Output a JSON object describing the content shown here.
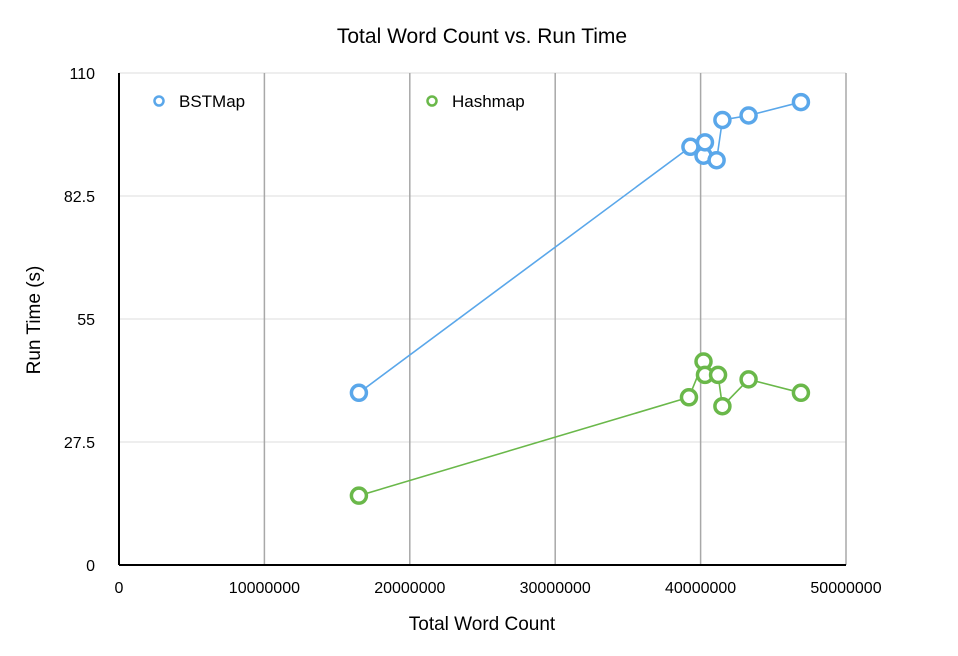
{
  "chart_data": {
    "type": "scatter",
    "title": "Total Word Count vs. Run Time",
    "xlabel": "Total Word Count",
    "ylabel": "Run Time (s)",
    "xlim": [
      0,
      50000000
    ],
    "ylim": [
      0,
      110
    ],
    "x_ticks": [
      0,
      10000000,
      20000000,
      30000000,
      40000000,
      50000000
    ],
    "y_ticks": [
      0,
      27.5,
      55,
      82.5,
      110
    ],
    "x_tick_labels": [
      "0",
      "10000000",
      "20000000",
      "30000000",
      "40000000",
      "50000000"
    ],
    "y_tick_labels": [
      "0",
      "27.5",
      "55",
      "82.5",
      "110"
    ],
    "grid": {
      "x": true,
      "y": true
    },
    "legend_position": "top",
    "series": [
      {
        "name": "BSTMap",
        "color": "#5aa7ea",
        "points": [
          {
            "x": 16500000,
            "y": 38.5
          },
          {
            "x": 39300000,
            "y": 93.5
          },
          {
            "x": 40200000,
            "y": 91.5
          },
          {
            "x": 40300000,
            "y": 94.5
          },
          {
            "x": 41100000,
            "y": 90.5
          },
          {
            "x": 41500000,
            "y": 99.5
          },
          {
            "x": 43300000,
            "y": 100.5
          },
          {
            "x": 46900000,
            "y": 103.5
          }
        ]
      },
      {
        "name": "Hashmap",
        "color": "#6ab84a",
        "points": [
          {
            "x": 16500000,
            "y": 15.5
          },
          {
            "x": 39200000,
            "y": 37.5
          },
          {
            "x": 40200000,
            "y": 45.5
          },
          {
            "x": 40300000,
            "y": 42.5
          },
          {
            "x": 41200000,
            "y": 42.5
          },
          {
            "x": 41500000,
            "y": 35.5
          },
          {
            "x": 43300000,
            "y": 41.5
          },
          {
            "x": 46900000,
            "y": 38.5
          }
        ]
      }
    ]
  }
}
